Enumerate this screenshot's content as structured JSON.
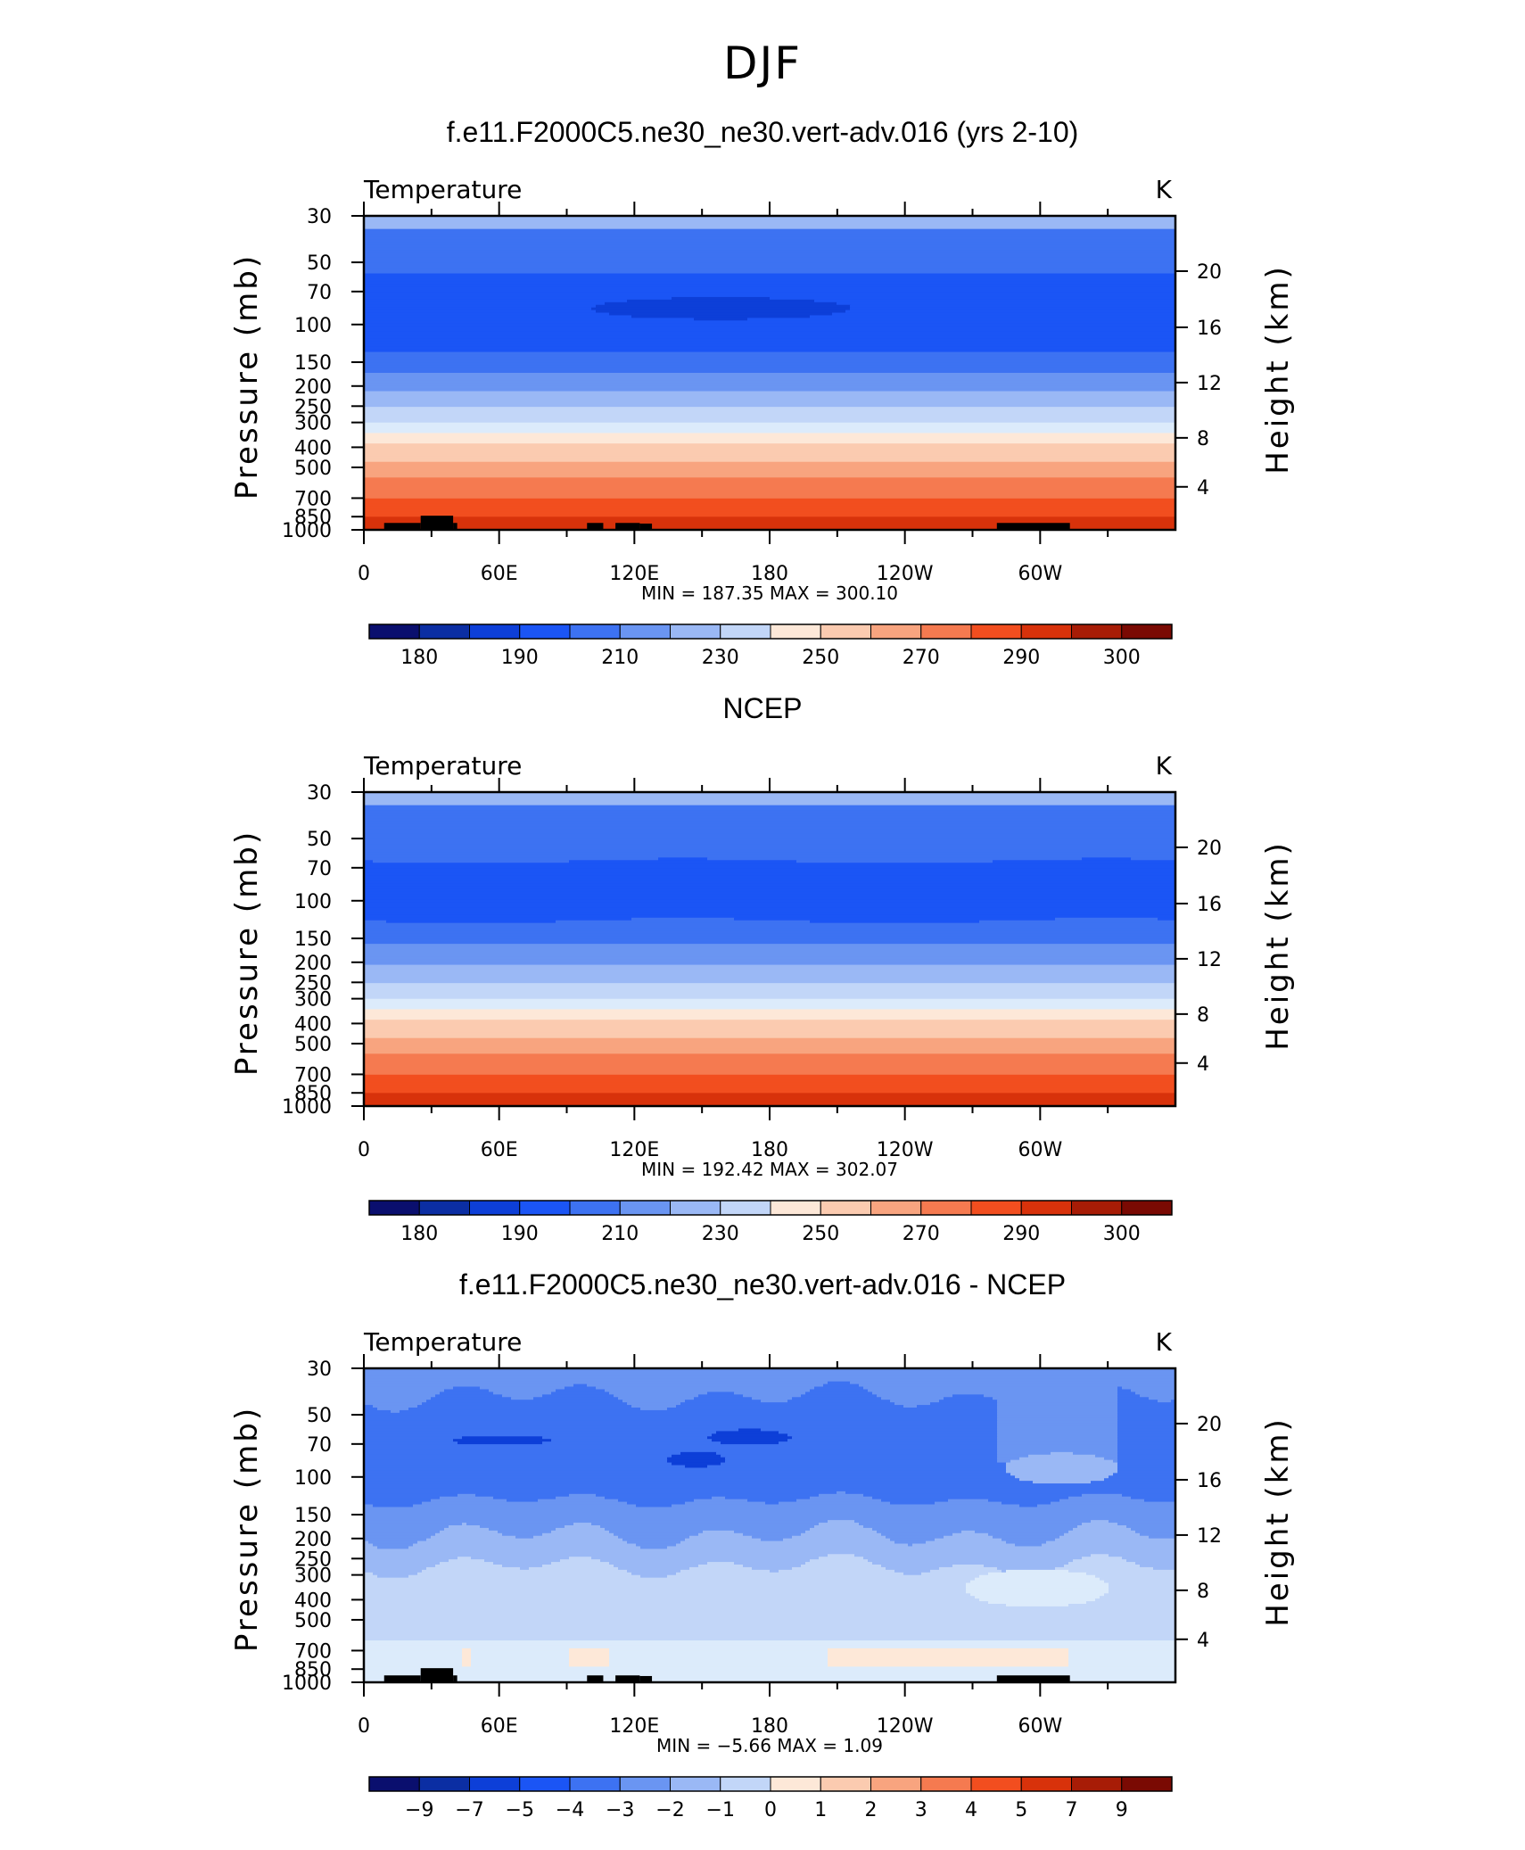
{
  "figure_title": "DJF",
  "chart_data": [
    {
      "type": "heatmap",
      "title": "f.e11.F2000C5.ne30_ne30.vert-adv.016 (yrs 2-10)",
      "left_label": "Temperature",
      "right_label": "K",
      "ylabel": "Pressure (mb)",
      "y2label": "Height (km)",
      "x_ticks": [
        "0",
        "60E",
        "120E",
        "180",
        "120W",
        "60W"
      ],
      "y_ticks": [
        "30",
        "50",
        "70",
        "100",
        "150",
        "200",
        "250",
        "300",
        "400",
        "500",
        "700",
        "850",
        "1000"
      ],
      "y2_ticks": [
        "20",
        "16",
        "12",
        "8",
        "4"
      ],
      "stats_text": "MIN = 187.35 MAX = 300.10",
      "colorbar_labels": [
        "180",
        "190",
        "210",
        "230",
        "250",
        "270",
        "290",
        "300"
      ],
      "field": "model"
    },
    {
      "type": "heatmap",
      "title": "NCEP",
      "left_label": "Temperature",
      "right_label": "K",
      "ylabel": "Pressure (mb)",
      "y2label": "Height (km)",
      "x_ticks": [
        "0",
        "60E",
        "120E",
        "180",
        "120W",
        "60W"
      ],
      "y_ticks": [
        "30",
        "50",
        "70",
        "100",
        "150",
        "200",
        "250",
        "300",
        "400",
        "500",
        "700",
        "850",
        "1000"
      ],
      "y2_ticks": [
        "20",
        "16",
        "12",
        "8",
        "4"
      ],
      "stats_text": "MIN = 192.42 MAX = 302.07",
      "colorbar_labels": [
        "180",
        "190",
        "210",
        "230",
        "250",
        "270",
        "290",
        "300"
      ],
      "field": "obs"
    },
    {
      "type": "heatmap",
      "title": "f.e11.F2000C5.ne30_ne30.vert-adv.016 - NCEP",
      "left_label": "Temperature",
      "right_label": "K",
      "ylabel": "Pressure (mb)",
      "y2label": "Height (km)",
      "x_ticks": [
        "0",
        "60E",
        "120E",
        "180",
        "120W",
        "60W"
      ],
      "y_ticks": [
        "30",
        "50",
        "70",
        "100",
        "150",
        "200",
        "250",
        "300",
        "400",
        "500",
        "700",
        "850",
        "1000"
      ],
      "y2_ticks": [
        "20",
        "16",
        "12",
        "8",
        "4"
      ],
      "stats_text": "MIN = −5.66 MAX = 1.09",
      "colorbar_labels": [
        "−9",
        "−7",
        "−5",
        "−4",
        "−3",
        "−2",
        "−1",
        "0",
        "1",
        "2",
        "3",
        "4",
        "5",
        "7",
        "9"
      ],
      "field": "diff"
    }
  ],
  "colors": {
    "palette": [
      "#0a0f6e",
      "#0b2ea3",
      "#0d3fd8",
      "#1b55f5",
      "#3d72f2",
      "#6a95f2",
      "#9ab8f5",
      "#c2d6f8",
      "#dcebfb",
      "#fde8d8",
      "#fbcbb0",
      "#f8a47f",
      "#f57a50",
      "#f24e1f",
      "#d8320b",
      "#a71c06",
      "#7a0a03"
    ],
    "barrier": "#000000"
  }
}
